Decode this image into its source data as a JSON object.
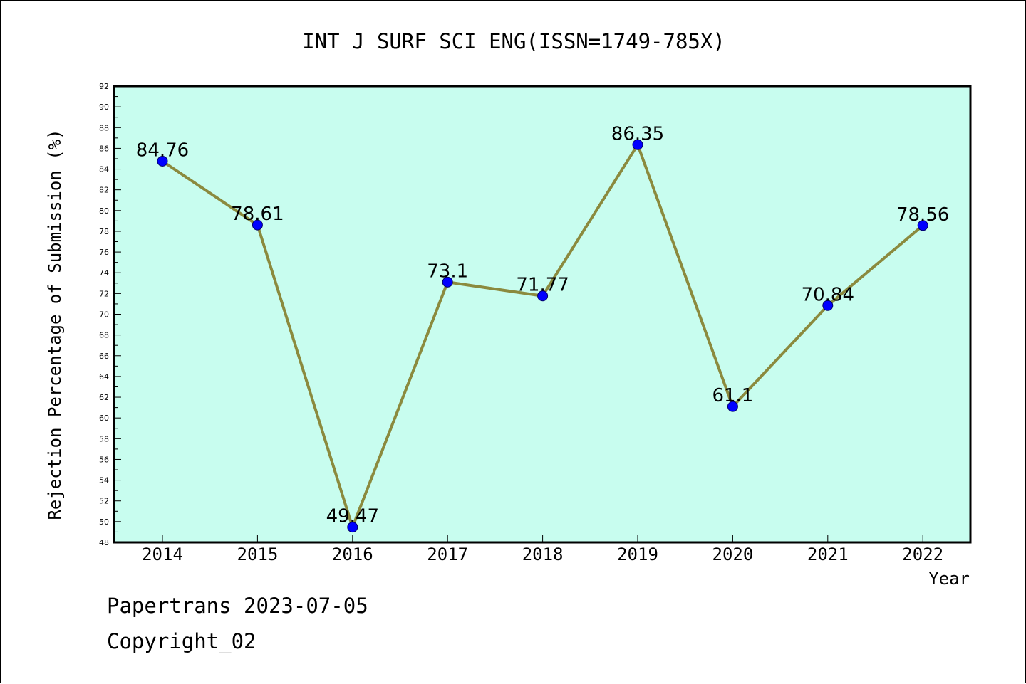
{
  "chart_data": {
    "type": "line",
    "title": "INT J SURF SCI ENG(ISSN=1749-785X)",
    "xlabel": "Year",
    "ylabel": "Rejection Percentage of Submission (%)",
    "categories": [
      "2014",
      "2015",
      "2016",
      "2017",
      "2018",
      "2019",
      "2020",
      "2021",
      "2022"
    ],
    "series": [
      {
        "values": [
          84.76,
          78.61,
          49.47,
          73.1,
          71.77,
          86.35,
          61.1,
          70.84,
          78.56
        ],
        "labels": [
          "84.76",
          "78.61",
          "49.47",
          "73.1",
          "71.77",
          "86.35",
          "61.1",
          "70.84",
          "78.56"
        ]
      }
    ],
    "ylim": [
      48,
      92
    ],
    "yticks": [
      "48",
      "50",
      "52",
      "54",
      "56",
      "58",
      "60",
      "62",
      "64",
      "66",
      "68",
      "70",
      "72",
      "74",
      "76",
      "78",
      "80",
      "82",
      "84",
      "86",
      "88",
      "90",
      "92"
    ],
    "grid": false,
    "colors": {
      "plot_background": "#c8fdef",
      "line": "#8b8a3e",
      "marker": "#0000ff",
      "axis": "#000000"
    }
  },
  "footer": {
    "line1": "Papertrans 2023-07-05",
    "line2": "Copyright_02"
  }
}
